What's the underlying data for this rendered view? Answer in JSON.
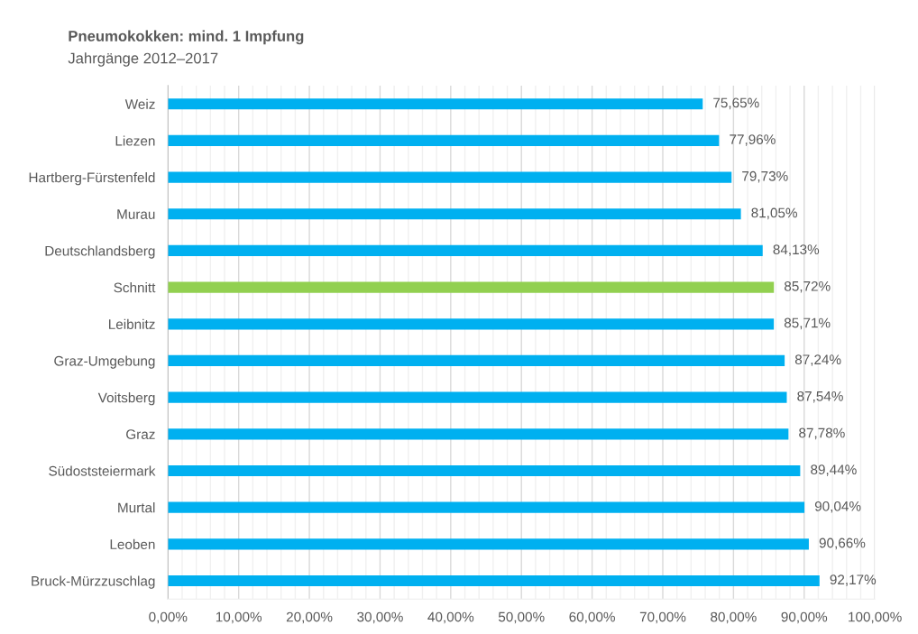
{
  "chart_data": {
    "type": "bar",
    "orientation": "horizontal",
    "title": "Pneumokokken: mind. 1 Impfung",
    "subtitle": "Jahrgänge 2012–2017",
    "categories": [
      "Weiz",
      "Liezen",
      "Hartberg-Fürstenfeld",
      "Murau",
      "Deutschlandsberg",
      "Schnitt",
      "Leibnitz",
      "Graz-Umgebung",
      "Voitsberg",
      "Graz",
      "Südoststeiermark",
      "Murtal",
      "Leoben",
      "Bruck-Mürzzuschlag"
    ],
    "values": [
      75.65,
      77.96,
      79.73,
      81.05,
      84.13,
      85.72,
      85.71,
      87.24,
      87.54,
      87.78,
      89.44,
      90.04,
      90.66,
      92.17
    ],
    "value_labels": [
      "75,65%",
      "77,96%",
      "79,73%",
      "81,05%",
      "84,13%",
      "85,72%",
      "85,71%",
      "87,24%",
      "87,54%",
      "87,78%",
      "89,44%",
      "90,04%",
      "90,66%",
      "92,17%"
    ],
    "colors": [
      "#00b0f0",
      "#00b0f0",
      "#00b0f0",
      "#00b0f0",
      "#00b0f0",
      "#92d050",
      "#00b0f0",
      "#00b0f0",
      "#00b0f0",
      "#00b0f0",
      "#00b0f0",
      "#00b0f0",
      "#00b0f0",
      "#00b0f0"
    ],
    "xlim": [
      0,
      100
    ],
    "xticks": [
      {
        "value": 0,
        "label": "0,00%"
      },
      {
        "value": 10,
        "label": "10,00%"
      },
      {
        "value": 20,
        "label": "20,00%"
      },
      {
        "value": 30,
        "label": "30,00%"
      },
      {
        "value": 40,
        "label": "40,00%"
      },
      {
        "value": 50,
        "label": "50,00%"
      },
      {
        "value": 60,
        "label": "60,00%"
      },
      {
        "value": 70,
        "label": "70,00%"
      },
      {
        "value": 80,
        "label": "80,00%"
      },
      {
        "value": 90,
        "label": "90,00%"
      },
      {
        "value": 100,
        "label": "100,00%"
      }
    ],
    "grid": "x",
    "legend": false
  }
}
